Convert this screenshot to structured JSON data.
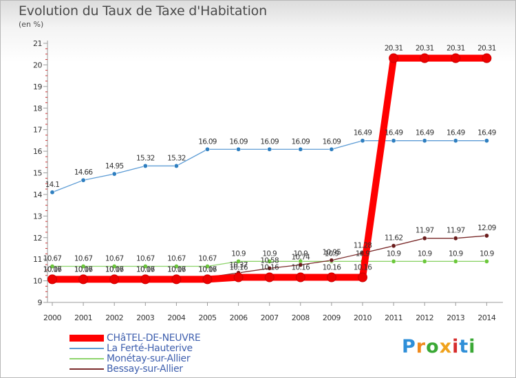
{
  "title": "Evolution du Taux de Taxe d'Habitation",
  "unit": "(en %)",
  "brand": {
    "text": "Proxiti",
    "letter_colors": [
      "#2f8fd8",
      "#f08a1c",
      "#3aa835",
      "#f0a21c",
      "#d62b2b",
      "#2f8fd8",
      "#3aa835"
    ]
  },
  "chart_data": {
    "type": "line",
    "title": "Evolution du Taux de Taxe d'Habitation",
    "subtitle": "(en %)",
    "x": [
      "2000",
      "2001",
      "2002",
      "2003",
      "2004",
      "2005",
      "2006",
      "2007",
      "2008",
      "2009",
      "2010",
      "2011",
      "2012",
      "2013",
      "2014"
    ],
    "ylim": [
      9,
      21
    ],
    "yticks": [
      9,
      10,
      11,
      12,
      13,
      14,
      15,
      16,
      17,
      18,
      19,
      20,
      21
    ],
    "grid": false,
    "legend_position": "bottom-left",
    "series": [
      {
        "name": "CHâTEL-DE-NEUVRE",
        "color": "#ff0000",
        "point_color": "#ee0000",
        "thick": true,
        "values": [
          10.07,
          10.07,
          10.07,
          10.07,
          10.07,
          10.07,
          10.16,
          10.16,
          10.16,
          10.16,
          10.16,
          20.31,
          20.31,
          20.31,
          20.31
        ],
        "labels": [
          "10.07",
          "10.07",
          "10.07",
          "10.07",
          "10.07",
          "10.07",
          "10.16",
          "10.16",
          "10.16",
          "10.16",
          "10.16",
          "20.31",
          "20.31",
          "20.31",
          "20.31"
        ]
      },
      {
        "name": "La Ferté-Hauterive",
        "color": "#5b9bd5",
        "point_color": "#2f7fc0",
        "thick": false,
        "values": [
          14.1,
          14.66,
          14.95,
          15.32,
          15.32,
          16.09,
          16.09,
          16.09,
          16.09,
          16.09,
          16.49,
          16.49,
          16.49,
          16.49,
          16.49
        ],
        "labels": [
          "14.1",
          "14.66",
          "14.95",
          "15.32",
          "15.32",
          "16.09",
          "16.09",
          "16.09",
          "16.09",
          "16.09",
          "16.49",
          "16.49",
          "16.49",
          "16.49",
          "16.49"
        ]
      },
      {
        "name": "Monétay-sur-Allier",
        "color": "#8cd46a",
        "point_color": "#6cc83c",
        "thick": false,
        "values": [
          10.67,
          10.67,
          10.67,
          10.67,
          10.67,
          10.67,
          10.9,
          10.9,
          10.9,
          10.9,
          10.9,
          10.9,
          10.9,
          10.9,
          10.9
        ],
        "labels": [
          "10.67",
          "10.67",
          "10.67",
          "10.67",
          "10.67",
          "10.67",
          "10.9",
          "10.9",
          "10.9",
          "10.9",
          "10.9",
          "10.9",
          "10.9",
          "10.9",
          "10.9"
        ]
      },
      {
        "name": "Bessay-sur-Allier",
        "color": "#7a2a2a",
        "point_color": "#6a1c1c",
        "thick": false,
        "values": [
          10.16,
          10.16,
          10.16,
          10.16,
          10.16,
          10.16,
          10.37,
          10.58,
          10.74,
          10.95,
          11.28,
          11.62,
          11.97,
          11.97,
          12.09
        ],
        "labels": [
          "10.16",
          "10.16",
          "10.16",
          "10.16",
          "10.16",
          "10.16",
          "10.37",
          "10.58",
          "10.74",
          "10.95",
          "11.28",
          "11.62",
          "11.97",
          "11.97",
          "12.09"
        ]
      }
    ]
  }
}
